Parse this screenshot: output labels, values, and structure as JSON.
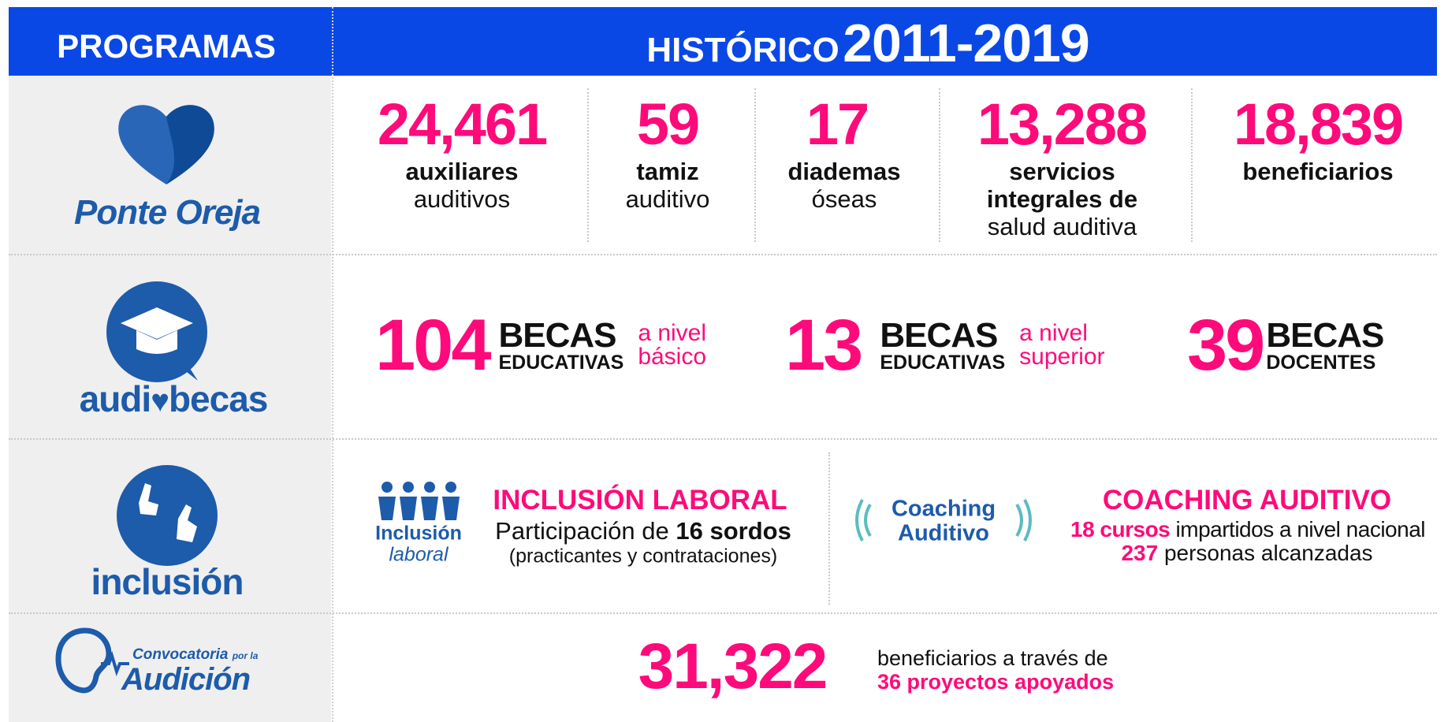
{
  "header": {
    "left": "PROGRAMAS",
    "title": "HISTÓRICO",
    "years": "2011-2019"
  },
  "rows": [
    {
      "logo": {
        "text": "Ponte Oreja"
      },
      "stats": [
        {
          "number": "24,461",
          "bold": [
            "auxiliares"
          ],
          "regular": [
            "auditivos"
          ]
        },
        {
          "number": "59",
          "bold": [
            "tamiz"
          ],
          "regular": [
            "auditivo"
          ]
        },
        {
          "number": "17",
          "bold": [
            "diademas"
          ],
          "regular": [
            "óseas"
          ]
        },
        {
          "number": "13,288",
          "bold": [
            "servicios",
            "integrales de"
          ],
          "regular": [
            "salud auditiva"
          ]
        },
        {
          "number": "18,839",
          "bold": [
            "beneficiarios"
          ]
        }
      ]
    },
    {
      "logo": {
        "text_before": "audi",
        "text_after": "becas"
      },
      "stats": [
        {
          "number": "104",
          "big": "BECAS",
          "small": "EDUCATIVAS",
          "note": [
            "a nivel",
            "básico"
          ]
        },
        {
          "number": "13",
          "big": "BECAS",
          "small": "EDUCATIVAS",
          "note": [
            "a nivel",
            "superior"
          ]
        },
        {
          "number": "39",
          "big": "BECAS",
          "small": "DOCENTES"
        }
      ]
    },
    {
      "logo": {
        "text": "inclusión"
      },
      "left": {
        "logo": [
          "Inclusión",
          "laboral"
        ],
        "title": "INCLUSIÓN LABORAL",
        "line1": [
          "Participación de",
          "16 sordos"
        ],
        "line2": "(practicantes y contrataciones)"
      },
      "right": {
        "logo": [
          "Coaching",
          "Auditivo"
        ],
        "title": "COACHING AUDITIVO",
        "line1": [
          "18 cursos",
          "impartidos a nivel nacional"
        ],
        "line2": [
          "237",
          "personas alcanzadas"
        ]
      }
    },
    {
      "logo": {
        "small": "Convocatoria",
        "tiny": "por la",
        "text": "Audición"
      },
      "number": "31,322",
      "line1": "beneficiarios a través de",
      "line2": "36 proyectos apoyados"
    }
  ]
}
